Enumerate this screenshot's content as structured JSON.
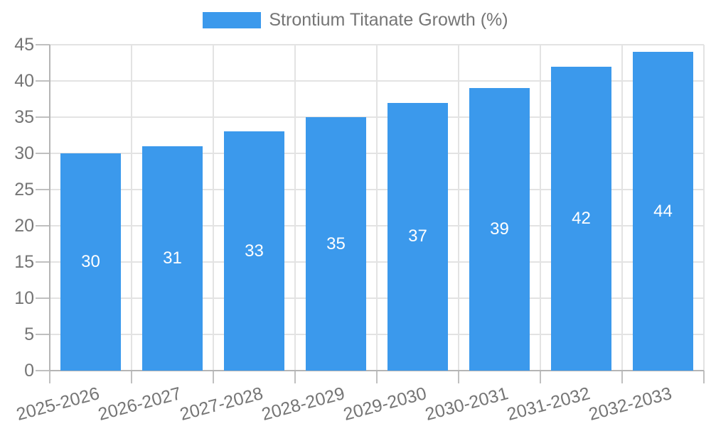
{
  "chart_data": {
    "type": "bar",
    "title": "",
    "series_name": "Strontium Titanate Growth (%)",
    "categories": [
      "2025-2026",
      "2026-2027",
      "2027-2028",
      "2028-2029",
      "2029-2030",
      "2030-2031",
      "2031-2032",
      "2032-2033"
    ],
    "values": [
      30,
      31,
      33,
      35,
      37,
      39,
      42,
      44
    ],
    "value_labels_shown": true,
    "xlabel": "",
    "ylabel": "",
    "ylim": [
      0,
      45
    ],
    "ytick_step": 5,
    "yticks": [
      0,
      5,
      10,
      15,
      20,
      25,
      30,
      35,
      40,
      45
    ],
    "grid": true,
    "legend_position": "top",
    "xlabel_rotation_deg": -15
  },
  "colors": {
    "bar": "#3b99ec",
    "value_label": "#ffffff",
    "text": "#757575",
    "gridline": "#e3e3e3",
    "axis_line": "#b5b5b5",
    "tick": "#c0c0c0"
  }
}
